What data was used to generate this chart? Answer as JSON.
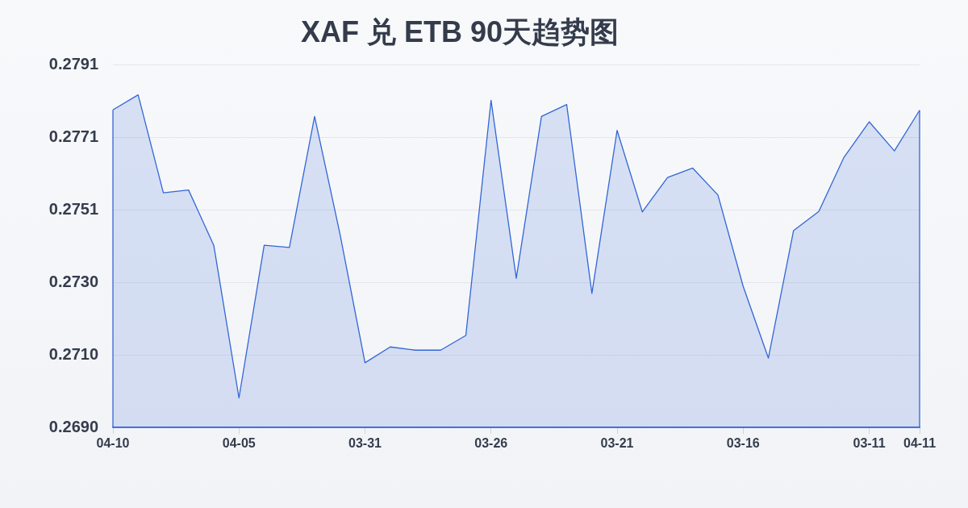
{
  "chart_data": {
    "type": "area",
    "title": "XAF 兑 ETB 90天趋势图",
    "categories": [
      "04-10",
      null,
      null,
      null,
      null,
      "04-05",
      null,
      null,
      null,
      null,
      "03-31",
      null,
      null,
      null,
      null,
      "03-26",
      null,
      null,
      null,
      null,
      "03-21",
      null,
      null,
      null,
      null,
      "03-16",
      null,
      null,
      null,
      null,
      "03-11",
      null,
      "04-11"
    ],
    "series": [
      {
        "color": "#3366d6",
        "values": [
          0.27784,
          0.27826,
          0.27553,
          0.27561,
          0.27407,
          0.26982,
          0.27407,
          0.27401,
          0.27766,
          0.27441,
          0.2708,
          0.27124,
          0.27115,
          0.27115,
          0.27156,
          0.27811,
          0.27315,
          0.27766,
          0.27799,
          0.27273,
          0.27727,
          0.275,
          0.27596,
          0.27622,
          0.27547,
          0.27293,
          0.27093,
          0.27448,
          0.27501,
          0.27652,
          0.27751,
          0.2767,
          0.27783
        ]
      }
    ],
    "ylim": [
      0.269,
      0.2791
    ],
    "yticks": [
      {
        "value": 0.269,
        "label": "0.2690"
      },
      {
        "value": 0.27102,
        "label": "0.2710"
      },
      {
        "value": 0.27304,
        "label": "0.2730"
      },
      {
        "value": 0.27506,
        "label": "0.2751"
      },
      {
        "value": 0.27708,
        "label": "0.2771"
      },
      {
        "value": 0.2791,
        "label": "0.2791"
      }
    ],
    "grid": "y",
    "legend": false,
    "marker": "none",
    "line_style": "solid"
  }
}
